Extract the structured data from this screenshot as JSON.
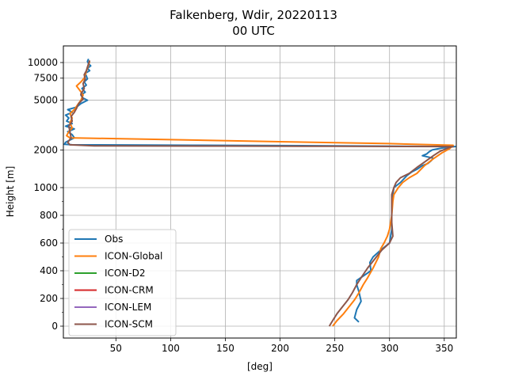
{
  "chart_data": {
    "type": "line",
    "title_line1": "Falkenberg, Wdir, 20220113",
    "title_line2": "00 UTC",
    "xlabel": "[deg]",
    "ylabel": "Height [m]",
    "xlim": [
      2,
      361
    ],
    "grid": true,
    "legend_position": "lower-left",
    "x_ticks": [
      {
        "value": 50,
        "label": "50"
      },
      {
        "value": 100,
        "label": "100"
      },
      {
        "value": 150,
        "label": "150"
      },
      {
        "value": 200,
        "label": "200"
      },
      {
        "value": 250,
        "label": "250"
      },
      {
        "value": 300,
        "label": "300"
      },
      {
        "value": 350,
        "label": "350"
      }
    ],
    "y_scale": "piecewise: linear 0-1000 m, logarithmic 1000-10000 m",
    "y_ticks": [
      {
        "value": 0,
        "label": "0"
      },
      {
        "value": 200,
        "label": "200"
      },
      {
        "value": 400,
        "label": "400"
      },
      {
        "value": 600,
        "label": "600"
      },
      {
        "value": 800,
        "label": "800"
      },
      {
        "value": 1000,
        "label": "1000"
      },
      {
        "value": 2000,
        "label": "2000"
      },
      {
        "value": 5000,
        "label": "5000"
      },
      {
        "value": 7500,
        "label": "7500"
      },
      {
        "value": 10000,
        "label": "10000"
      }
    ],
    "series": [
      {
        "name": "Obs",
        "color": "#1f77b4",
        "points": [
          [
            272,
            30
          ],
          [
            268,
            60
          ],
          [
            270,
            120
          ],
          [
            274,
            180
          ],
          [
            272,
            250
          ],
          [
            270,
            300
          ],
          [
            270,
            330
          ],
          [
            283,
            400
          ],
          [
            282,
            460
          ],
          [
            285,
            500
          ],
          [
            292,
            550
          ],
          [
            300,
            600
          ],
          [
            302,
            700
          ],
          [
            302,
            780
          ],
          [
            302,
            860
          ],
          [
            303,
            950
          ],
          [
            304,
            1000
          ],
          [
            310,
            1100
          ],
          [
            316,
            1250
          ],
          [
            320,
            1330
          ],
          [
            325,
            1400
          ],
          [
            330,
            1500
          ],
          [
            335,
            1560
          ],
          [
            338,
            1640
          ],
          [
            340,
            1720
          ],
          [
            330,
            1800
          ],
          [
            334,
            1860
          ],
          [
            336,
            1930
          ],
          [
            339,
            2000
          ],
          [
            345,
            2050
          ],
          [
            352,
            2100
          ],
          [
            360,
            2130
          ],
          [
            250,
            2160
          ],
          [
            120,
            2180
          ],
          [
            10,
            2200
          ],
          [
            3,
            2220
          ],
          [
            4,
            2300
          ],
          [
            8,
            2400
          ],
          [
            12,
            2500
          ],
          [
            10,
            2650
          ],
          [
            6,
            2800
          ],
          [
            12,
            2950
          ],
          [
            4,
            3100
          ],
          [
            10,
            3250
          ],
          [
            5,
            3400
          ],
          [
            7,
            3600
          ],
          [
            4,
            3800
          ],
          [
            10,
            4000
          ],
          [
            6,
            4200
          ],
          [
            14,
            4400
          ],
          [
            18,
            4700
          ],
          [
            24,
            5000
          ],
          [
            20,
            5200
          ],
          [
            18,
            5500
          ],
          [
            22,
            5800
          ],
          [
            19,
            6200
          ],
          [
            23,
            6600
          ],
          [
            21,
            7000
          ],
          [
            24,
            7400
          ],
          [
            23,
            7800
          ],
          [
            22,
            8200
          ],
          [
            26,
            8600
          ],
          [
            24,
            9000
          ],
          [
            27,
            9400
          ],
          [
            25,
            9800
          ],
          [
            24,
            10200
          ],
          [
            25,
            10700
          ]
        ]
      },
      {
        "name": "ICON-Global",
        "color": "#ff7f0e",
        "points": [
          [
            248,
            0
          ],
          [
            252,
            40
          ],
          [
            258,
            90
          ],
          [
            263,
            140
          ],
          [
            268,
            190
          ],
          [
            272,
            240
          ],
          [
            276,
            300
          ],
          [
            280,
            350
          ],
          [
            285,
            420
          ],
          [
            290,
            500
          ],
          [
            292,
            560
          ],
          [
            295,
            600
          ],
          [
            298,
            650
          ],
          [
            300,
            700
          ],
          [
            302,
            800
          ],
          [
            303,
            900
          ],
          [
            304,
            950
          ],
          [
            308,
            1000
          ],
          [
            312,
            1100
          ],
          [
            318,
            1200
          ],
          [
            325,
            1300
          ],
          [
            332,
            1500
          ],
          [
            340,
            1700
          ],
          [
            348,
            1900
          ],
          [
            355,
            2050
          ],
          [
            358,
            2180
          ],
          [
            300,
            2250
          ],
          [
            200,
            2330
          ],
          [
            100,
            2420
          ],
          [
            8,
            2500
          ],
          [
            5,
            2600
          ],
          [
            7,
            2800
          ],
          [
            10,
            3000
          ],
          [
            8,
            3300
          ],
          [
            10,
            3600
          ],
          [
            8,
            3900
          ],
          [
            12,
            4200
          ],
          [
            15,
            4600
          ],
          [
            18,
            5000
          ],
          [
            20,
            5500
          ],
          [
            17,
            6000
          ],
          [
            14,
            6500
          ],
          [
            18,
            7000
          ],
          [
            21,
            7500
          ],
          [
            22,
            8000
          ],
          [
            23,
            8500
          ],
          [
            24,
            9000
          ],
          [
            25,
            9600
          ],
          [
            26,
            10200
          ]
        ]
      },
      {
        "name": "ICON-D2",
        "color": "#2ca02c",
        "points": []
      },
      {
        "name": "ICON-CRM",
        "color": "#d62728",
        "points": []
      },
      {
        "name": "ICON-LEM",
        "color": "#9467bd",
        "points": []
      },
      {
        "name": "ICON-SCM",
        "color": "#8c564b",
        "points": [
          [
            245,
            0
          ],
          [
            248,
            40
          ],
          [
            252,
            90
          ],
          [
            257,
            140
          ],
          [
            262,
            190
          ],
          [
            266,
            240
          ],
          [
            270,
            300
          ],
          [
            274,
            350
          ],
          [
            280,
            420
          ],
          [
            286,
            480
          ],
          [
            293,
            550
          ],
          [
            300,
            600
          ],
          [
            303,
            650
          ],
          [
            302,
            750
          ],
          [
            302,
            850
          ],
          [
            302,
            950
          ],
          [
            304,
            1000
          ],
          [
            306,
            1100
          ],
          [
            310,
            1200
          ],
          [
            318,
            1300
          ],
          [
            325,
            1450
          ],
          [
            332,
            1600
          ],
          [
            340,
            1800
          ],
          [
            346,
            1950
          ],
          [
            355,
            2100
          ],
          [
            358,
            2130
          ],
          [
            250,
            2140
          ],
          [
            150,
            2150
          ],
          [
            30,
            2160
          ],
          [
            8,
            2200
          ],
          [
            6,
            2300
          ],
          [
            9,
            2500
          ],
          [
            8,
            2800
          ],
          [
            7,
            3100
          ],
          [
            10,
            3400
          ],
          [
            9,
            3700
          ],
          [
            12,
            4000
          ],
          [
            14,
            4300
          ],
          [
            16,
            4700
          ],
          [
            20,
            5100
          ],
          [
            18,
            5600
          ],
          [
            21,
            6200
          ],
          [
            20,
            6800
          ],
          [
            22,
            7400
          ],
          [
            21,
            8000
          ],
          [
            23,
            8600
          ],
          [
            24,
            9200
          ],
          [
            25,
            9800
          ],
          [
            26,
            10400
          ]
        ]
      }
    ]
  }
}
